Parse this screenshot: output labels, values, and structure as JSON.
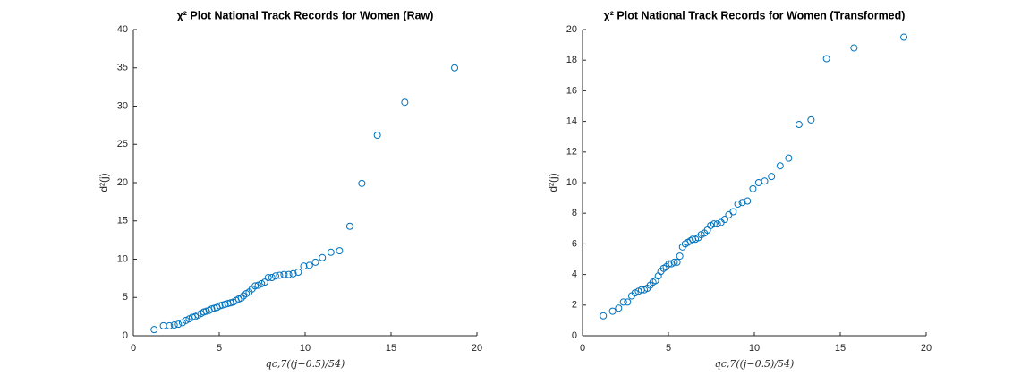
{
  "chart_data": [
    {
      "type": "scatter",
      "title": "χ² Plot National Track Records for Women (Raw)",
      "xlabel": "qc,7((j−0.5)/54)",
      "ylabel": "d²(j)",
      "color": "#0072BD",
      "x": [
        1.21,
        1.75,
        2.1,
        2.38,
        2.62,
        2.86,
        3.06,
        3.25,
        3.43,
        3.6,
        3.77,
        3.94,
        4.1,
        4.25,
        4.41,
        4.56,
        4.72,
        4.87,
        5.03,
        5.18,
        5.34,
        5.5,
        5.66,
        5.82,
        5.98,
        6.13,
        6.28,
        6.41,
        6.57,
        6.74,
        6.91,
        7.09,
        7.27,
        7.46,
        7.65,
        7.85,
        8.06,
        8.28,
        8.51,
        8.77,
        9.04,
        9.3,
        9.6,
        9.92,
        10.25,
        10.6,
        11.0,
        11.5,
        12.0,
        12.6,
        13.3,
        14.2,
        15.8,
        18.7
      ],
      "values": [
        0.8,
        1.3,
        1.3,
        1.4,
        1.5,
        1.7,
        2.0,
        2.2,
        2.4,
        2.5,
        2.7,
        2.9,
        3.1,
        3.2,
        3.3,
        3.5,
        3.6,
        3.7,
        3.9,
        4.0,
        4.1,
        4.2,
        4.3,
        4.4,
        4.6,
        4.8,
        4.9,
        5.2,
        5.5,
        5.7,
        6.1,
        6.5,
        6.6,
        6.8,
        7.0,
        7.6,
        7.6,
        7.8,
        7.9,
        8.0,
        8.0,
        8.1,
        8.3,
        9.1,
        9.2,
        9.6,
        10.2,
        10.9,
        11.1,
        14.3,
        19.9,
        26.2,
        30.5,
        35.0
      ],
      "xlim": [
        0,
        20
      ],
      "xticks": [
        0,
        5,
        10,
        15,
        20
      ],
      "ylim": [
        0,
        40
      ],
      "yticks": [
        0,
        5,
        10,
        15,
        20,
        25,
        30,
        35,
        40
      ]
    },
    {
      "type": "scatter",
      "title": "χ² Plot National Track Records for Women (Transformed)",
      "xlabel": "qc,7((j−0.5)/54)",
      "ylabel": "d²(j)",
      "color": "#0072BD",
      "x": [
        1.21,
        1.75,
        2.1,
        2.38,
        2.62,
        2.86,
        3.06,
        3.25,
        3.43,
        3.6,
        3.77,
        3.94,
        4.1,
        4.25,
        4.41,
        4.56,
        4.72,
        4.87,
        5.03,
        5.18,
        5.34,
        5.5,
        5.66,
        5.82,
        5.98,
        6.13,
        6.28,
        6.41,
        6.57,
        6.74,
        6.91,
        7.09,
        7.27,
        7.46,
        7.65,
        7.85,
        8.06,
        8.28,
        8.51,
        8.77,
        9.04,
        9.3,
        9.6,
        9.92,
        10.25,
        10.6,
        11.0,
        11.5,
        12.0,
        12.6,
        13.3,
        14.2,
        15.8,
        18.7
      ],
      "values": [
        1.3,
        1.6,
        1.8,
        2.2,
        2.2,
        2.6,
        2.8,
        2.9,
        3.0,
        3.0,
        3.1,
        3.3,
        3.5,
        3.6,
        3.9,
        4.2,
        4.4,
        4.5,
        4.7,
        4.7,
        4.8,
        4.8,
        5.2,
        5.8,
        6.0,
        6.1,
        6.2,
        6.3,
        6.3,
        6.4,
        6.6,
        6.7,
        6.9,
        7.2,
        7.3,
        7.3,
        7.4,
        7.6,
        7.9,
        8.1,
        8.6,
        8.7,
        8.8,
        9.6,
        10.0,
        10.1,
        10.4,
        11.1,
        11.6,
        13.8,
        14.1,
        18.1,
        18.8,
        19.5
      ],
      "xlim": [
        0,
        20
      ],
      "xticks": [
        0,
        5,
        10,
        15,
        20
      ],
      "ylim": [
        0,
        20
      ],
      "yticks": [
        0,
        2,
        4,
        6,
        8,
        10,
        12,
        14,
        16,
        18,
        20
      ]
    }
  ]
}
